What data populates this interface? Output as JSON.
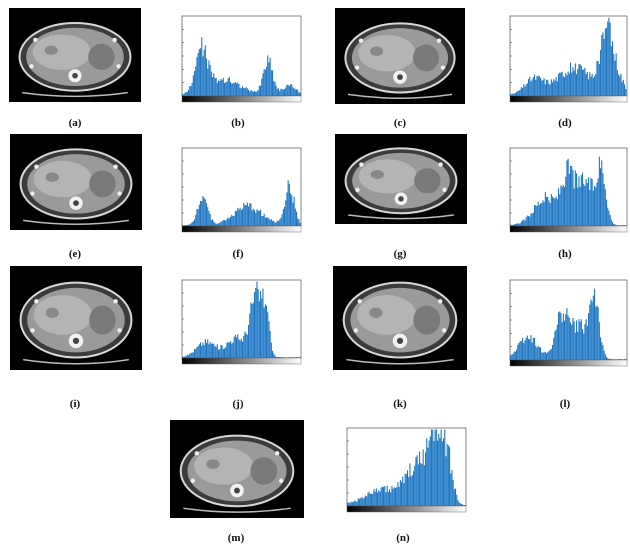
{
  "figure": {
    "panels": [
      {
        "id": "a",
        "label": "(a)",
        "kind": "ct"
      },
      {
        "id": "b",
        "label": "(b)",
        "kind": "histogram"
      },
      {
        "id": "c",
        "label": "(c)",
        "kind": "ct"
      },
      {
        "id": "d",
        "label": "(d)",
        "kind": "histogram"
      },
      {
        "id": "e",
        "label": "(e)",
        "kind": "ct"
      },
      {
        "id": "f",
        "label": "(f)",
        "kind": "histogram"
      },
      {
        "id": "g",
        "label": "(g)",
        "kind": "ct"
      },
      {
        "id": "h",
        "label": "(h)",
        "kind": "histogram"
      },
      {
        "id": "i",
        "label": "(i)",
        "kind": "ct"
      },
      {
        "id": "j",
        "label": "(j)",
        "kind": "histogram"
      },
      {
        "id": "k",
        "label": "(k)",
        "kind": "ct"
      },
      {
        "id": "l",
        "label": "(l)",
        "kind": "histogram"
      },
      {
        "id": "m",
        "label": "(m)",
        "kind": "ct"
      },
      {
        "id": "n",
        "label": "(n)",
        "kind": "histogram"
      }
    ],
    "colors": {
      "histogram_fill": "#1f77c4",
      "ct_background": "#000000",
      "tissue": "#9a9a9a"
    }
  }
}
